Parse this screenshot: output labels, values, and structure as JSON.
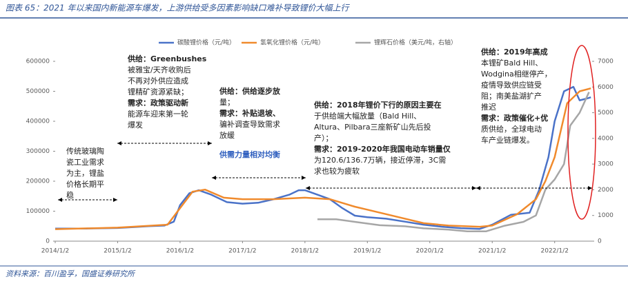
{
  "chart_data": {
    "type": "line",
    "title": "图表 65：2021 年以来国内新能源车爆发，上游供给受多因素影响缺口难补导致锂价大幅上行",
    "source": "资料来源：百川盈孚，国盛证券研究所",
    "xlim": [
      2014,
      2022.6
    ],
    "xticks": [
      {
        "value": 2014,
        "label": "2014/1/2"
      },
      {
        "value": 2015,
        "label": "2015/1/2"
      },
      {
        "value": 2016,
        "label": "2016/1/2"
      },
      {
        "value": 2017,
        "label": "2017/1/2"
      },
      {
        "value": 2018,
        "label": "2018/1/2"
      },
      {
        "value": 2019,
        "label": "2019/1/2"
      },
      {
        "value": 2020,
        "label": "2020/1/2"
      },
      {
        "value": 2021,
        "label": "2021/1/2"
      },
      {
        "value": 2022,
        "label": "2022/1/2"
      }
    ],
    "ylim": [
      0,
      600000
    ],
    "yticks": [
      0,
      100000,
      200000,
      300000,
      400000,
      500000,
      600000
    ],
    "y2lim": [
      0,
      7000
    ],
    "y2ticks": [
      0,
      1000,
      2000,
      3000,
      4000,
      5000,
      6000,
      7000
    ],
    "series": [
      {
        "name": "碳酸锂价格（元/吨）",
        "color": "#4a72c8",
        "x": [
          2014,
          2014.5,
          2015,
          2015.25,
          2015.5,
          2015.75,
          2015.9,
          2016,
          2016.15,
          2016.3,
          2016.5,
          2016.75,
          2017,
          2017.25,
          2017.5,
          2017.75,
          2017.9,
          2018,
          2018.2,
          2018.4,
          2018.6,
          2018.8,
          2019,
          2019.3,
          2019.6,
          2019.9,
          2020.2,
          2020.5,
          2020.8,
          2021,
          2021.3,
          2021.6,
          2021.75,
          2021.9,
          2022,
          2022.15,
          2022.3,
          2022.4,
          2022.5,
          2022.58
        ],
        "values": [
          42000,
          42000,
          44000,
          47000,
          50000,
          52000,
          65000,
          120000,
          160000,
          170000,
          155000,
          130000,
          125000,
          128000,
          140000,
          155000,
          170000,
          170000,
          155000,
          140000,
          110000,
          85000,
          80000,
          75000,
          65000,
          55000,
          48000,
          43000,
          41000,
          55000,
          88000,
          95000,
          170000,
          280000,
          400000,
          500000,
          515000,
          470000,
          475000,
          480000
        ]
      },
      {
        "name": "氢氧化锂价格（元/吨）",
        "color": "#f08a2c",
        "x": [
          2014,
          2015,
          2015.8,
          2016,
          2016.2,
          2016.4,
          2016.7,
          2017,
          2017.5,
          2018,
          2018.4,
          2018.8,
          2019,
          2019.5,
          2019.9,
          2020.3,
          2020.8,
          2021,
          2021.4,
          2021.7,
          2021.85,
          2022,
          2022.2,
          2022.4,
          2022.58
        ],
        "values": [
          40000,
          45000,
          55000,
          110000,
          165000,
          172000,
          145000,
          140000,
          140000,
          145000,
          140000,
          115000,
          105000,
          80000,
          60000,
          52000,
          48000,
          52000,
          90000,
          140000,
          200000,
          280000,
          460000,
          500000,
          510000
        ]
      },
      {
        "name": "锂辉石价格（美元/吨，右轴）",
        "color": "#a6a6a6",
        "axis": "y2",
        "x": [
          2018.2,
          2018.5,
          2018.8,
          2019.2,
          2019.6,
          2019.9,
          2020.3,
          2020.6,
          2020.9,
          2021.2,
          2021.5,
          2021.7,
          2021.85,
          2022,
          2022.15,
          2022.25,
          2022.4,
          2022.55
        ],
        "values": [
          850,
          850,
          750,
          620,
          580,
          500,
          450,
          380,
          380,
          600,
          750,
          1000,
          2000,
          2400,
          3000,
          4500,
          5000,
          5800
        ]
      }
    ],
    "annotations": [
      [
        "传统玻璃陶",
        "瓷工业需求",
        "为主，锂盐",
        "价格长期平",
        "稳"
      ],
      [
        "供给：Greenbushes",
        "被雅宝/天齐收购后",
        "不再对外供应造成",
        "锂精矿资源紧缺；",
        "需求：政策驱动新",
        "能源车迎来第一轮",
        "爆发"
      ],
      [
        "供给：供给逐步放",
        "量；",
        "需求：补贴退坡、",
        "骗补调查导致需求",
        "放缓",
        "供需力量相对均衡"
      ],
      [
        "供给：2018年锂价下行的原因主要在",
        "于供给端大幅放量（Bald Hill、",
        "Altura、Pilbara三座新矿山先后投",
        "产）；",
        "需求：2019-2020年我国电动车销量仅",
        "为120.6/136.7万辆，接近停滞，3C需",
        "求也较为疲软"
      ],
      [
        "供给：2019年高成",
        "本锂矿Bald Hill、",
        "Wodgina相继停产，",
        "疫情导致供应链受",
        "阻；南美盐湖扩产",
        "推迟",
        "需求：政策催化+优",
        "质供给，全球电动",
        "车产业链爆发。"
      ]
    ]
  }
}
